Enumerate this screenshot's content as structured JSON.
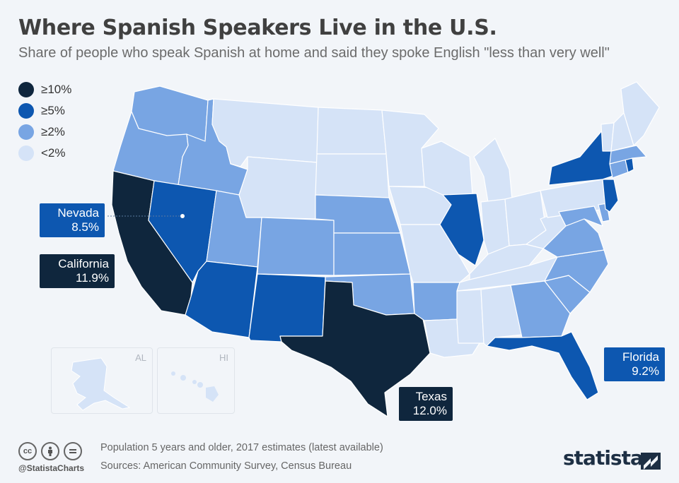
{
  "title": "Where Spanish Speakers Live in the U.S.",
  "subtitle": "Share of people who speak Spanish at home and said they spoke English \"less than very well\"",
  "legend": [
    {
      "label": "≥10%",
      "color": "#0f263d"
    },
    {
      "label": "≥5%",
      "color": "#0d57b0"
    },
    {
      "label": "≥2%",
      "color": "#78a5e3"
    },
    {
      "label": "<2%",
      "color": "#d5e3f7"
    }
  ],
  "callouts": {
    "nevada": {
      "name": "Nevada",
      "value": "8.5%"
    },
    "california": {
      "name": "California",
      "value": "11.9%"
    },
    "texas": {
      "name": "Texas",
      "value": "12.0%"
    },
    "florida": {
      "name": "Florida",
      "value": "9.2%"
    }
  },
  "insets": {
    "alaska": "AL",
    "hawaii": "HI"
  },
  "footer": {
    "handle": "@StatistaCharts",
    "note": "Population 5 years and older, 2017 estimates (latest available)",
    "sources": "Sources: American Community Survey, Census Bureau",
    "brand": "statista",
    "license_icons": [
      "cc-icon",
      "attribution-icon",
      "no-derivatives-icon"
    ]
  },
  "states": [
    {
      "name": "California",
      "share_category": "≥10%"
    },
    {
      "name": "Texas",
      "share_category": "≥10%"
    },
    {
      "name": "Nevada",
      "share_category": "≥5%"
    },
    {
      "name": "Arizona",
      "share_category": "≥5%"
    },
    {
      "name": "New Mexico",
      "share_category": "≥5%"
    },
    {
      "name": "Florida",
      "share_category": "≥5%"
    },
    {
      "name": "Illinois",
      "share_category": "≥5%"
    },
    {
      "name": "New York",
      "share_category": "≥5%"
    },
    {
      "name": "New Jersey",
      "share_category": "≥5%"
    },
    {
      "name": "Rhode Island",
      "share_category": "≥5%"
    },
    {
      "name": "Washington",
      "share_category": "≥2%"
    },
    {
      "name": "Oregon",
      "share_category": "≥2%"
    },
    {
      "name": "Idaho",
      "share_category": "≥2%"
    },
    {
      "name": "Utah",
      "share_category": "≥2%"
    },
    {
      "name": "Colorado",
      "share_category": "≥2%"
    },
    {
      "name": "Nebraska",
      "share_category": "≥2%"
    },
    {
      "name": "Kansas",
      "share_category": "≥2%"
    },
    {
      "name": "Oklahoma",
      "share_category": "≥2%"
    },
    {
      "name": "Arkansas",
      "share_category": "≥2%"
    },
    {
      "name": "Georgia",
      "share_category": "≥2%"
    },
    {
      "name": "North Carolina",
      "share_category": "≥2%"
    },
    {
      "name": "South Carolina",
      "share_category": "≥2%"
    },
    {
      "name": "Virginia",
      "share_category": "≥2%"
    },
    {
      "name": "Maryland",
      "share_category": "≥2%"
    },
    {
      "name": "Delaware",
      "share_category": "≥2%"
    },
    {
      "name": "Connecticut",
      "share_category": "≥2%"
    },
    {
      "name": "Massachusetts",
      "share_category": "≥2%"
    },
    {
      "name": "Montana",
      "share_category": "<2%"
    },
    {
      "name": "Wyoming",
      "share_category": "<2%"
    },
    {
      "name": "North Dakota",
      "share_category": "<2%"
    },
    {
      "name": "South Dakota",
      "share_category": "<2%"
    },
    {
      "name": "Minnesota",
      "share_category": "<2%"
    },
    {
      "name": "Iowa",
      "share_category": "<2%"
    },
    {
      "name": "Missouri",
      "share_category": "<2%"
    },
    {
      "name": "Wisconsin",
      "share_category": "<2%"
    },
    {
      "name": "Michigan",
      "share_category": "<2%"
    },
    {
      "name": "Indiana",
      "share_category": "<2%"
    },
    {
      "name": "Ohio",
      "share_category": "<2%"
    },
    {
      "name": "Kentucky",
      "share_category": "<2%"
    },
    {
      "name": "Tennessee",
      "share_category": "<2%"
    },
    {
      "name": "Mississippi",
      "share_category": "<2%"
    },
    {
      "name": "Alabama",
      "share_category": "<2%"
    },
    {
      "name": "Louisiana",
      "share_category": "<2%"
    },
    {
      "name": "West Virginia",
      "share_category": "<2%"
    },
    {
      "name": "Pennsylvania",
      "share_category": "<2%"
    },
    {
      "name": "Vermont",
      "share_category": "<2%"
    },
    {
      "name": "New Hampshire",
      "share_category": "<2%"
    },
    {
      "name": "Maine",
      "share_category": "<2%"
    },
    {
      "name": "Alaska",
      "share_category": "<2%"
    },
    {
      "name": "Hawaii",
      "share_category": "<2%"
    }
  ]
}
